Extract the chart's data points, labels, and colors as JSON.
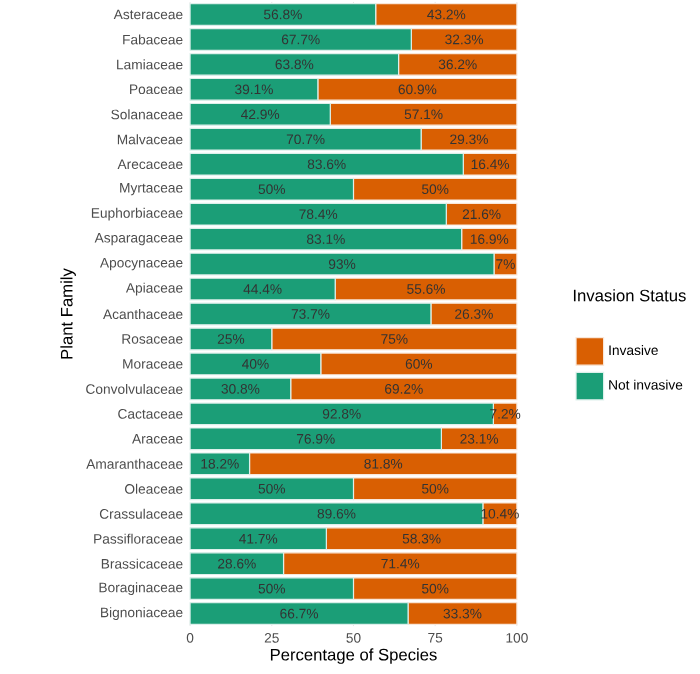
{
  "chart_data": {
    "type": "bar",
    "orientation": "horizontal",
    "stacked": true,
    "xlabel": "Percentage of Species",
    "ylabel": "Plant Family",
    "legend_title": "Invasion Status",
    "legend": "right",
    "categories": [
      "Asteraceae",
      "Fabaceae",
      "Lamiaceae",
      "Poaceae",
      "Solanaceae",
      "Malvaceae",
      "Arecaceae",
      "Myrtaceae",
      "Euphorbiaceae",
      "Asparagaceae",
      "Apocynaceae",
      "Apiaceae",
      "Acanthaceae",
      "Rosaceae",
      "Moraceae",
      "Convolvulaceae",
      "Cactaceae",
      "Araceae",
      "Amaranthaceae",
      "Oleaceae",
      "Crassulaceae",
      "Passifloraceae",
      "Brassicaceae",
      "Boraginaceae",
      "Bignoniaceae"
    ],
    "series": [
      {
        "name": "Not invasive",
        "color": "#1b9e77",
        "values": [
          56.8,
          67.7,
          63.8,
          39.1,
          42.9,
          70.7,
          83.6,
          50,
          78.4,
          83.1,
          93,
          44.4,
          73.7,
          25,
          40,
          30.8,
          92.8,
          76.9,
          18.2,
          50,
          89.6,
          41.7,
          28.6,
          50,
          66.7
        ],
        "value_labels": [
          "56.8%",
          "67.7%",
          "63.8%",
          "39.1%",
          "42.9%",
          "70.7%",
          "83.6%",
          "50%",
          "78.4%",
          "83.1%",
          "93%",
          "44.4%",
          "73.7%",
          "25%",
          "40%",
          "30.8%",
          "92.8%",
          "76.9%",
          "18.2%",
          "50%",
          "89.6%",
          "41.7%",
          "28.6%",
          "50%",
          "66.7%"
        ]
      },
      {
        "name": "Invasive",
        "color": "#d95f02",
        "values": [
          43.2,
          32.3,
          36.2,
          60.9,
          57.1,
          29.3,
          16.4,
          50,
          21.6,
          16.9,
          7,
          55.6,
          26.3,
          75,
          60,
          69.2,
          7.2,
          23.1,
          81.8,
          50,
          10.4,
          58.3,
          71.4,
          50,
          33.3
        ],
        "value_labels": [
          "43.2%",
          "32.3%",
          "36.2%",
          "60.9%",
          "57.1%",
          "29.3%",
          "16.4%",
          "50%",
          "21.6%",
          "16.9%",
          "7%",
          "55.6%",
          "26.3%",
          "75%",
          "60%",
          "69.2%",
          "7.2%",
          "23.1%",
          "81.8%",
          "50%",
          "10.4%",
          "58.3%",
          "71.4%",
          "50%",
          "33.3%"
        ]
      }
    ],
    "xlim": [
      0,
      100
    ],
    "xticks": [
      0,
      25,
      50,
      75,
      100
    ]
  }
}
